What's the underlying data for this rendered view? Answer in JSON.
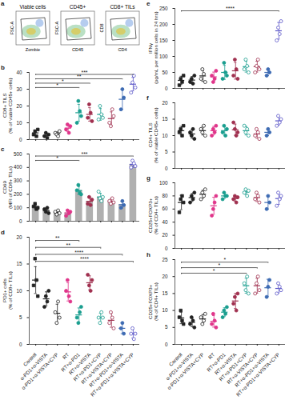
{
  "gating": {
    "panel": "a",
    "plots": [
      {
        "title": "Viable cells",
        "xlabel": "Zombie",
        "ylabel": "FSC-A"
      },
      {
        "title": "CD45+",
        "xlabel": "CD45",
        "ylabel": "FSC-A"
      },
      {
        "title": "CD8+ TILs",
        "xlabel": "CD4",
        "ylabel": "CD8"
      }
    ]
  },
  "categories": [
    "Control",
    "α-PD1+α-VISTA",
    "α-PD1+α-VISTA+CYP",
    "RT",
    "RT+α-PD1",
    "RT+α-VISTA",
    "RT+α-PD1+CYP",
    "RT+α-VISTA+CYP",
    "RT+α-PD1+α-VISTA",
    "RT+α-PD1+α-VISTA+CYP"
  ],
  "colors": [
    "#222222",
    "#222222",
    "#222222",
    "#e0358a",
    "#1a9e8f",
    "#a0304f",
    "#1a9e8f",
    "#a0304f",
    "#3d6bb3",
    "#5a56c8"
  ],
  "markers": [
    "square",
    "circle",
    "circle-open",
    "circle",
    "circle",
    "circle",
    "circle-open",
    "circle-open",
    "circle",
    "circle-open"
  ],
  "chart_data": [
    {
      "panel": "b",
      "type": "scatter",
      "ylabel": "CD8+ TILS (% of viable CD45+ cells)",
      "ylim": [
        0,
        40
      ],
      "yticks": [
        0,
        10,
        20,
        30,
        40
      ],
      "tick_labels": "y",
      "values": [
        [
          3,
          5,
          2,
          6
        ],
        [
          2,
          4,
          1,
          3
        ],
        [
          4,
          3,
          2,
          5
        ],
        [
          6,
          9,
          4,
          8
        ],
        [
          10,
          23,
          17,
          14
        ],
        [
          13,
          21,
          16,
          11
        ],
        [
          12,
          20,
          15,
          13
        ],
        [
          10,
          8,
          18,
          14
        ],
        [
          18,
          30,
          25
        ],
        [
          28,
          34,
          38,
          31
        ]
      ],
      "means": [
        4,
        2.5,
        3.5,
        6.8,
        16,
        15,
        15,
        12.5,
        24,
        33
      ],
      "errors": [
        1.5,
        1,
        1,
        2,
        5,
        4,
        3.5,
        4,
        6,
        4
      ],
      "brackets": [
        {
          "from": 0,
          "to": 9,
          "label": "***"
        },
        {
          "from": 0,
          "to": 8,
          "label": "**"
        },
        {
          "from": 0,
          "to": 5,
          "label": "*"
        },
        {
          "from": 0,
          "to": 4,
          "label": "*"
        }
      ]
    },
    {
      "panel": "c",
      "type": "bar",
      "ylabel": "CD69 (MFI of CD8+ TILs)",
      "ylim": [
        0,
        500
      ],
      "yticks": [
        0,
        100,
        200,
        300,
        400,
        500
      ],
      "tick_labels": "y",
      "values": [
        [
          110,
          130,
          90,
          100
        ],
        [
          90,
          70,
          100,
          60
        ],
        [
          70,
          50,
          80,
          60
        ],
        [
          40,
          80,
          60,
          70
        ],
        [
          230,
          270,
          210,
          200
        ],
        [
          130,
          180,
          120,
          160
        ],
        [
          220,
          170,
          150,
          180
        ],
        [
          150,
          130,
          170,
          140
        ],
        [
          100,
          150,
          120
        ],
        [
          400,
          450,
          430,
          410
        ]
      ],
      "means": [
        108,
        80,
        65,
        62,
        228,
        148,
        180,
        148,
        123,
        423
      ],
      "errors": [
        15,
        15,
        12,
        15,
        30,
        25,
        28,
        18,
        25,
        22
      ],
      "brackets": [
        {
          "from": 0,
          "to": 9,
          "label": "***"
        },
        {
          "from": 0,
          "to": 4,
          "label": "*"
        }
      ]
    },
    {
      "panel": "d",
      "type": "scatter",
      "ylabel": "PD1+ cells (% of CD8+ TILs)",
      "ylim": [
        0,
        20
      ],
      "yticks": [
        0,
        5,
        10,
        15,
        20
      ],
      "tick_labels": true,
      "values": [
        [
          11,
          16,
          12,
          9
        ],
        [
          7,
          9,
          8,
          10
        ],
        [
          6,
          4,
          8,
          5
        ],
        [
          10,
          12,
          9,
          8
        ],
        [
          5,
          4,
          6,
          7
        ],
        [
          13,
          11,
          10,
          12
        ],
        [
          5,
          4,
          6,
          5
        ],
        [
          4,
          6,
          5,
          3
        ],
        [
          3,
          4,
          2
        ],
        [
          2,
          3,
          1,
          2
        ]
      ],
      "means": [
        12,
        8.5,
        5.8,
        9.8,
        5.5,
        11.5,
        5,
        4.5,
        3,
        2
      ],
      "errors": [
        2.5,
        1.3,
        1.7,
        1.7,
        1.3,
        1.3,
        0.8,
        1.3,
        1,
        0.8
      ],
      "brackets": [
        {
          "from": 0,
          "to": 4,
          "label": "**"
        },
        {
          "from": 0,
          "to": 6,
          "label": "**"
        },
        {
          "from": 0,
          "to": 8,
          "label": "****"
        },
        {
          "from": 0,
          "to": 9,
          "label": "****"
        }
      ]
    },
    {
      "panel": "e",
      "type": "scatter",
      "ylabel": "IFNγ (pg/mL per million cells in 24 hrs)",
      "ylim": [
        0,
        250
      ],
      "yticks": [
        0,
        50,
        100,
        150,
        200,
        250
      ],
      "tick_labels": "y",
      "values": [
        [
          10,
          30,
          20,
          40
        ],
        [
          20,
          30,
          15,
          40
        ],
        [
          30,
          60,
          45,
          20
        ],
        [
          40,
          20,
          30,
          55
        ],
        [
          30,
          80,
          50,
          40
        ],
        [
          40,
          90,
          60,
          30
        ],
        [
          60,
          90,
          70,
          50
        ],
        [
          50,
          70,
          90,
          60
        ],
        [
          40,
          60,
          50
        ],
        [
          150,
          190,
          170,
          210
        ]
      ],
      "means": [
        25,
        26,
        39,
        36,
        50,
        55,
        68,
        68,
        50,
        180
      ],
      "errors": [
        13,
        11,
        17,
        15,
        22,
        26,
        17,
        17,
        10,
        26
      ],
      "brackets": [
        {
          "from": 0,
          "to": 9,
          "label": "****"
        }
      ]
    },
    {
      "panel": "f",
      "type": "scatter",
      "ylabel": "CD4+ TILS (% of viable CD45+ cells)",
      "ylim": [
        0,
        20
      ],
      "yticks": [
        0,
        5,
        10,
        15,
        20
      ],
      "tick_labels": "y",
      "values": [
        [
          11,
          12,
          10,
          13
        ],
        [
          11,
          10,
          12,
          9
        ],
        [
          12,
          11,
          13,
          10
        ],
        [
          10,
          12,
          11,
          13
        ],
        [
          11,
          13,
          10,
          12
        ],
        [
          14,
          12,
          10,
          11
        ],
        [
          13,
          11,
          12,
          10
        ],
        [
          10,
          12,
          11,
          9
        ],
        [
          10,
          12,
          11
        ],
        [
          13,
          16,
          14,
          15
        ]
      ],
      "means": [
        11.5,
        10.5,
        11.5,
        11.5,
        11.5,
        11.8,
        11.5,
        10.5,
        11,
        14.5
      ],
      "errors": [
        1.3,
        1.3,
        1.3,
        1.3,
        1.3,
        1.7,
        1.3,
        1.3,
        1,
        1.3
      ],
      "brackets": []
    },
    {
      "panel": "g",
      "type": "scatter",
      "ylabel": "CD25+FOXP3+ (% of CD4+ TILs)",
      "ylim": [
        0,
        100
      ],
      "yticks": [
        0,
        20,
        40,
        60,
        80,
        100
      ],
      "tick_labels": "y",
      "values": [
        [
          55,
          75,
          80,
          70
        ],
        [
          70,
          80,
          75,
          85
        ],
        [
          75,
          85,
          80,
          90
        ],
        [
          50,
          60,
          70,
          80
        ],
        [
          75,
          85,
          80,
          80
        ],
        [
          75,
          80,
          70,
          78
        ],
        [
          85,
          90,
          80,
          88
        ],
        [
          75,
          85,
          80,
          70
        ],
        [
          60,
          80,
          70
        ],
        [
          65,
          85,
          75,
          80
        ]
      ],
      "means": [
        70,
        77.5,
        82.5,
        65,
        80,
        76,
        86,
        77.5,
        70,
        76
      ],
      "errors": [
        11,
        6,
        6,
        13,
        4,
        4,
        4,
        6,
        10,
        9
      ],
      "brackets": []
    },
    {
      "panel": "h",
      "type": "scatter",
      "ylabel": "CD25+FOXP3+ (% of CD4+ TILs)",
      "ylim": [
        0,
        25
      ],
      "yticks": [
        0,
        5,
        10,
        15,
        20,
        25
      ],
      "tick_labels": true,
      "values": [
        [
          8,
          10,
          7,
          6
        ],
        [
          6,
          8,
          7,
          5
        ],
        [
          8,
          6,
          7,
          9
        ],
        [
          6,
          9,
          7,
          5
        ],
        [
          8,
          10,
          9,
          11
        ],
        [
          12,
          14,
          10,
          15
        ],
        [
          18,
          16,
          20,
          15
        ],
        [
          15,
          18,
          20,
          16
        ],
        [
          14,
          17,
          19
        ],
        [
          15,
          18,
          17,
          16
        ]
      ],
      "means": [
        7.8,
        6.5,
        7.5,
        6.8,
        9.5,
        12.8,
        17.3,
        17.3,
        16.7,
        16.5
      ],
      "errors": [
        1.7,
        1.3,
        1.3,
        1.7,
        1.3,
        2.2,
        2.2,
        2.2,
        2.5,
        1.3
      ],
      "brackets": [
        {
          "from": 0,
          "to": 8,
          "label": "*"
        },
        {
          "from": 0,
          "to": 7,
          "label": "*"
        },
        {
          "from": 0,
          "to": 6,
          "label": "*"
        }
      ]
    }
  ]
}
